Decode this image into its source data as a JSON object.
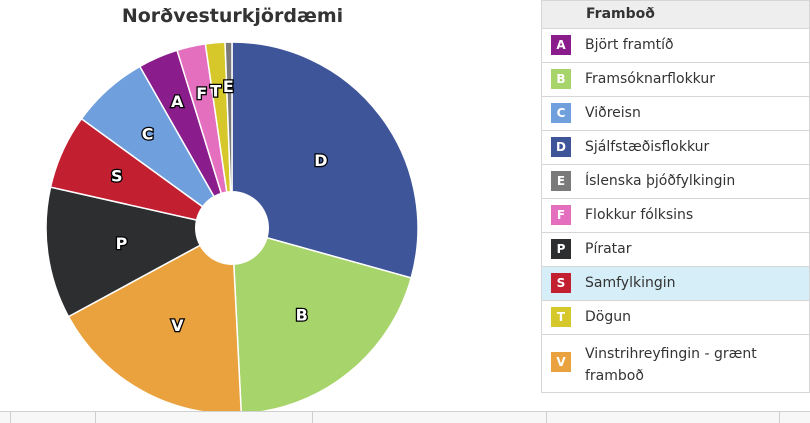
{
  "chart_data": {
    "type": "pie",
    "title": "Norðvesturkjördæmi",
    "slices": [
      {
        "letter": "D",
        "label": "Sjálfstæðisflokkur",
        "value": 29.5,
        "color": "#3e5599"
      },
      {
        "letter": "B",
        "label": "Framsóknarflokkur",
        "value": 20.0,
        "color": "#a8d46c"
      },
      {
        "letter": "V",
        "label": "Vinstrihreyfingin - grænt framboð",
        "value": 18.0,
        "color": "#e9a23e"
      },
      {
        "letter": "P",
        "label": "Píratar",
        "value": 11.5,
        "color": "#2d2e30"
      },
      {
        "letter": "S",
        "label": "Samfylkingin",
        "value": 6.5,
        "color": "#c21f30"
      },
      {
        "letter": "C",
        "label": "Viðreisn",
        "value": 6.8,
        "color": "#6f9fdc"
      },
      {
        "letter": "A",
        "label": "Björt framtíð",
        "value": 3.5,
        "color": "#8a1c8c"
      },
      {
        "letter": "F",
        "label": "Flokkur fólksins",
        "value": 2.5,
        "color": "#e46fbf"
      },
      {
        "letter": "T",
        "label": "Dögun",
        "value": 1.7,
        "color": "#d6c82a"
      },
      {
        "letter": "E",
        "label": "Íslenska þjóðfylkingin",
        "value": 0.6,
        "color": "#7a7a7a"
      }
    ]
  },
  "legend": {
    "header": "Framboð",
    "highlighted": "S",
    "items": [
      {
        "letter": "A",
        "label": "Björt framtíð",
        "color": "#8a1c8c"
      },
      {
        "letter": "B",
        "label": "Framsóknarflokkur",
        "color": "#a8d46c"
      },
      {
        "letter": "C",
        "label": "Viðreisn",
        "color": "#6f9fdc"
      },
      {
        "letter": "D",
        "label": "Sjálfstæðisflokkur",
        "color": "#3e5599"
      },
      {
        "letter": "E",
        "label": "Íslenska þjóðfylkingin",
        "color": "#7a7a7a"
      },
      {
        "letter": "F",
        "label": "Flokkur fólksins",
        "color": "#e46fbf"
      },
      {
        "letter": "P",
        "label": "Píratar",
        "color": "#2d2e30"
      },
      {
        "letter": "S",
        "label": "Samfylkingin",
        "color": "#c21f30"
      },
      {
        "letter": "T",
        "label": "Dögun",
        "color": "#d6c82a"
      },
      {
        "letter": "V",
        "label": "Vinstrihreyfingin - grænt framboð",
        "color": "#e9a23e"
      }
    ]
  }
}
